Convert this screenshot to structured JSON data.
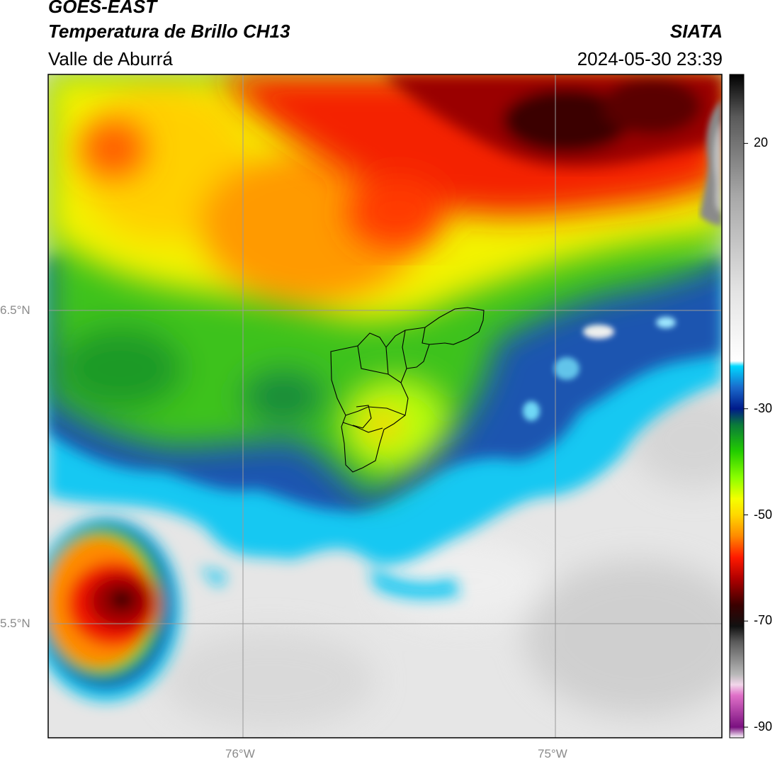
{
  "header": {
    "satellite": "GOES-EAST",
    "product": "Temperatura de Brillo CH13",
    "region": "Valle de Aburrá",
    "organization": "SIATA",
    "timestamp": "2024-05-30 23:39"
  },
  "axes": {
    "lat_ticks": [
      "6.5°N",
      "5.5°N"
    ],
    "lon_ticks": [
      "76°W",
      "75°W"
    ]
  },
  "colorbar": {
    "tick_labels": [
      "20",
      "-30",
      "-50",
      "-70",
      "-90"
    ],
    "tick_values": [
      20,
      -30,
      -50,
      -70,
      -90
    ],
    "range": [
      -92,
      33
    ],
    "stops": [
      {
        "v": -92,
        "c": "#ffffff"
      },
      {
        "v": -90,
        "c": "#7a1080"
      },
      {
        "v": -84,
        "c": "#e070c8"
      },
      {
        "v": -82,
        "c": "#f2d6ea"
      },
      {
        "v": -80,
        "c": "#b7b7b7"
      },
      {
        "v": -74,
        "c": "#5c5c5c"
      },
      {
        "v": -71,
        "c": "#111111"
      },
      {
        "v": -67,
        "c": "#3a0000"
      },
      {
        "v": -62,
        "c": "#b00000"
      },
      {
        "v": -58,
        "c": "#ff1a00"
      },
      {
        "v": -54,
        "c": "#ff8a00"
      },
      {
        "v": -50,
        "c": "#ffd800"
      },
      {
        "v": -47,
        "c": "#f5ff00"
      },
      {
        "v": -43,
        "c": "#8cff00"
      },
      {
        "v": -38,
        "c": "#22cc00"
      },
      {
        "v": -33,
        "c": "#0a7a3a"
      },
      {
        "v": -30,
        "c": "#001a8a"
      },
      {
        "v": -26,
        "c": "#1a6acc"
      },
      {
        "v": -22,
        "c": "#00d8ff"
      },
      {
        "v": -21,
        "c": "#ffffff"
      },
      {
        "v": -8,
        "c": "#e4e4e4"
      },
      {
        "v": 10,
        "c": "#a8a8a8"
      },
      {
        "v": 25,
        "c": "#5a5a5a"
      },
      {
        "v": 33,
        "c": "#000000"
      }
    ]
  },
  "legend_colors": {
    "cold_cloud_gray": "#e6e6e6",
    "warm_surface": "#5c5c5c",
    "grid_line": "#9a9a9a",
    "municipality_outline": "#000000"
  }
}
